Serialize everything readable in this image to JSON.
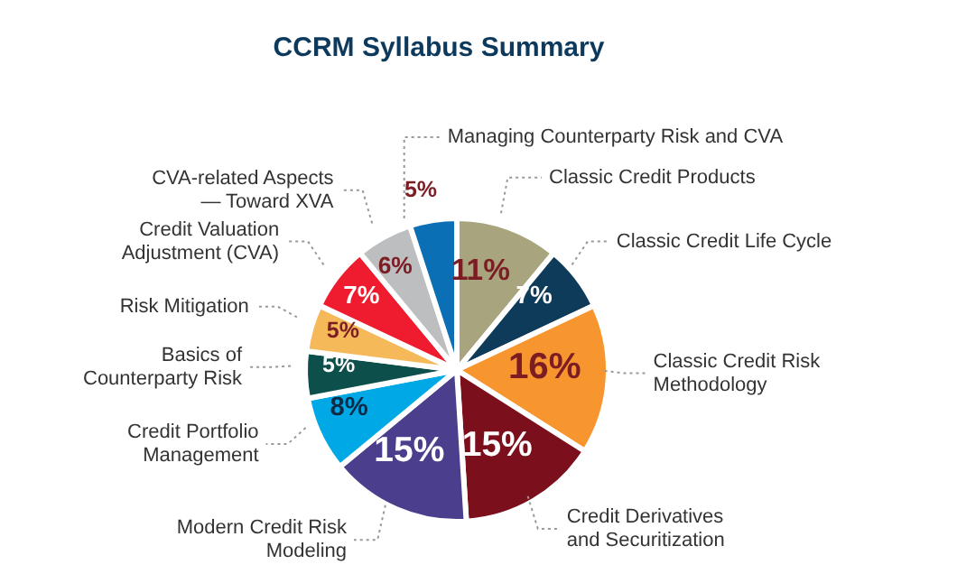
{
  "chart_data": {
    "type": "pie",
    "title": "CCRM Syllabus Summary",
    "categories": [
      "Classic Credit Products",
      "Classic Credit Life Cycle",
      "Classic Credit Risk Methodology",
      "Credit Derivatives and Securitization",
      "Modern Credit Risk Modeling",
      "Credit Portfolio Management",
      "Basics of Counterparty Risk",
      "Risk Mitigation",
      "Credit Valuation Adjustment (CVA)",
      "CVA-related Aspects — Toward XVA",
      "Managing Counterparty Risk and CVA"
    ],
    "values": [
      11,
      7,
      16,
      15,
      15,
      8,
      5,
      5,
      7,
      6,
      5
    ],
    "value_labels": [
      "11%",
      "7%",
      "16%",
      "15%",
      "15%",
      "8%",
      "5%",
      "5%",
      "7%",
      "6%",
      "5%"
    ],
    "colors": [
      "#a8a57e",
      "#0f3b5a",
      "#f7962e",
      "#7c0f1c",
      "#4b3e8c",
      "#00a8e6",
      "#0c4f4b",
      "#f5b95a",
      "#ee1c2e",
      "#bcbec0",
      "#0a6fb5"
    ]
  }
}
